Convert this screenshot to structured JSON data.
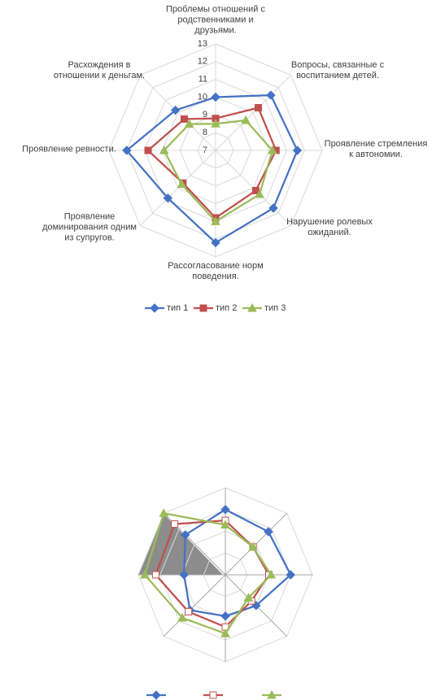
{
  "chart_data": [
    {
      "type": "radar",
      "categories": [
        "Проблемы отношений с родственниками и друзьями.",
        "Вопросы, связанные с воспитанием детей.",
        "Проявление стремления к автономии.",
        "Нарушение ролевых ожиданий.",
        "Рассогласование норм поведения.",
        "Проявление доминирования одним из супругов.",
        "Проявление ревности.",
        "Расхождения в отношении к деньгам."
      ],
      "ylim": [
        7,
        13
      ],
      "yticks": [
        7,
        8,
        9,
        10,
        11,
        12,
        13
      ],
      "tick_labels": true,
      "legend": "bottom",
      "series": [
        {
          "name": "тип 1",
          "color": "#4472c4",
          "marker": "diamond",
          "values": [
            10,
            11.4,
            11.6,
            11.6,
            12.2,
            10.8,
            12,
            10.2
          ]
        },
        {
          "name": "тип 2",
          "color": "#c0504d",
          "marker": "square",
          "values": [
            8.8,
            10.4,
            10.4,
            10.2,
            10.8,
            9.6,
            10.8,
            9.5
          ]
        },
        {
          "name": "тип 3",
          "color": "#9bbb59",
          "marker": "triangle",
          "values": [
            8.5,
            9.4,
            10.2,
            10.5,
            11,
            9.7,
            9.9,
            9.1
          ]
        }
      ]
    },
    {
      "type": "radar",
      "categories": [
        null,
        null,
        null,
        null,
        null,
        null,
        null,
        null
      ],
      "ylim": [
        0,
        4
      ],
      "yticks": [
        0,
        1,
        2,
        3,
        4
      ],
      "tick_labels": false,
      "legend": "bottom",
      "series": [
        {
          "color": "#4472c4",
          "marker": "diamond",
          "values": [
            3,
            2.8,
            3,
            2,
            1.9,
            2.3,
            1.9,
            2.6
          ]
        },
        {
          "color": "#c0504d",
          "marker": "square",
          "marker_fill": "none",
          "values": [
            2.5,
            1.8,
            2,
            1.7,
            2.4,
            2.4,
            3.2,
            3.3
          ]
        },
        {
          "color": "#9bbb59",
          "marker": "triangle",
          "values": [
            2.3,
            1.8,
            2.1,
            1.5,
            2.7,
            2.8,
            3.7,
            4
          ]
        }
      ]
    }
  ]
}
